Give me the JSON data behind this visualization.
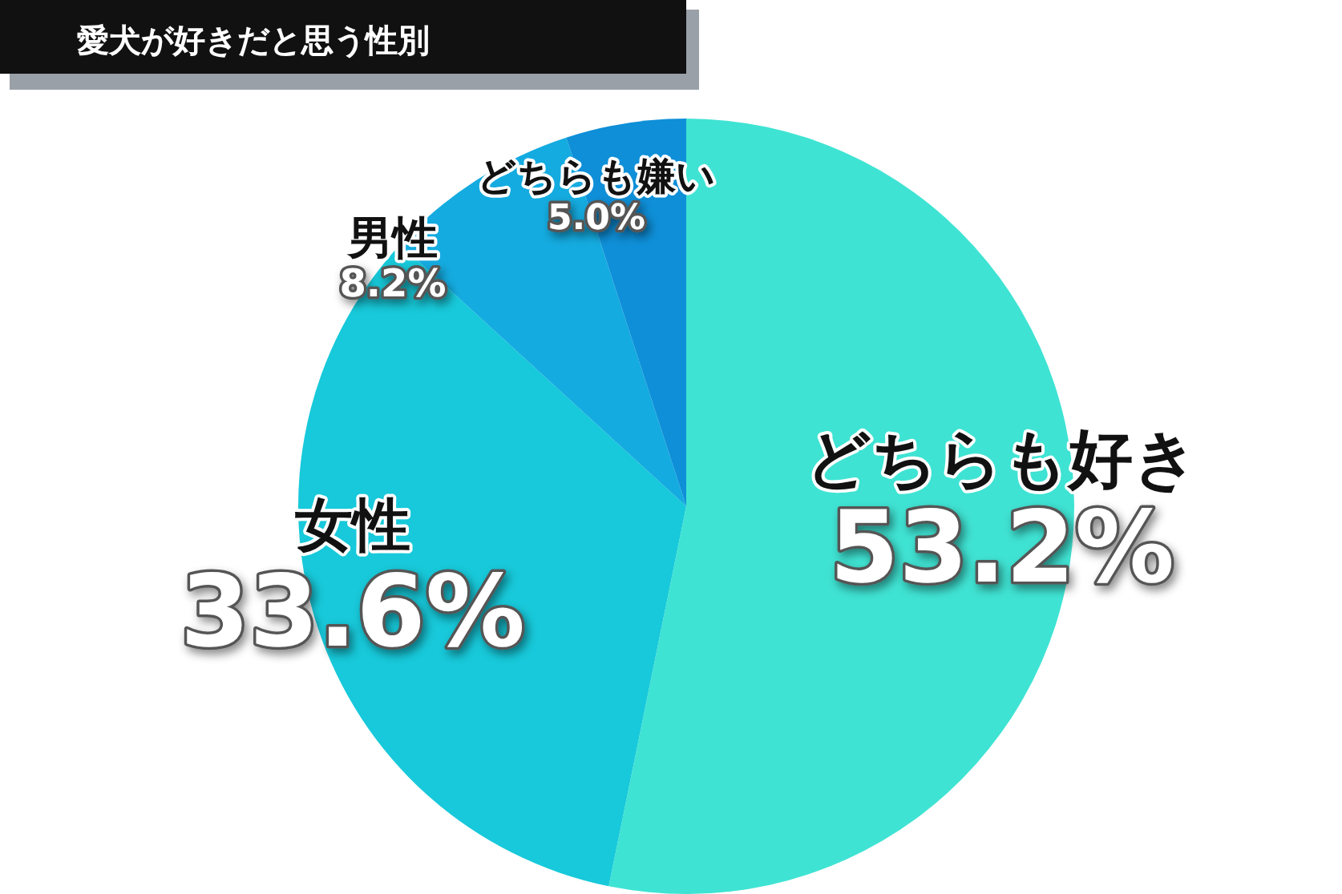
{
  "chart_data": {
    "type": "pie",
    "title": "愛犬が好きだと思う性別",
    "categories": [
      "どちらも好き",
      "女性",
      "男性",
      "どちらも嫌い"
    ],
    "values": [
      53.2,
      33.6,
      8.2,
      5.0
    ],
    "colors": [
      "#3fe3d3",
      "#17c9da",
      "#14abe0",
      "#0e8fd8"
    ],
    "value_labels": [
      "53.2%",
      "33.6%",
      "8.2%",
      "5.0%"
    ]
  }
}
